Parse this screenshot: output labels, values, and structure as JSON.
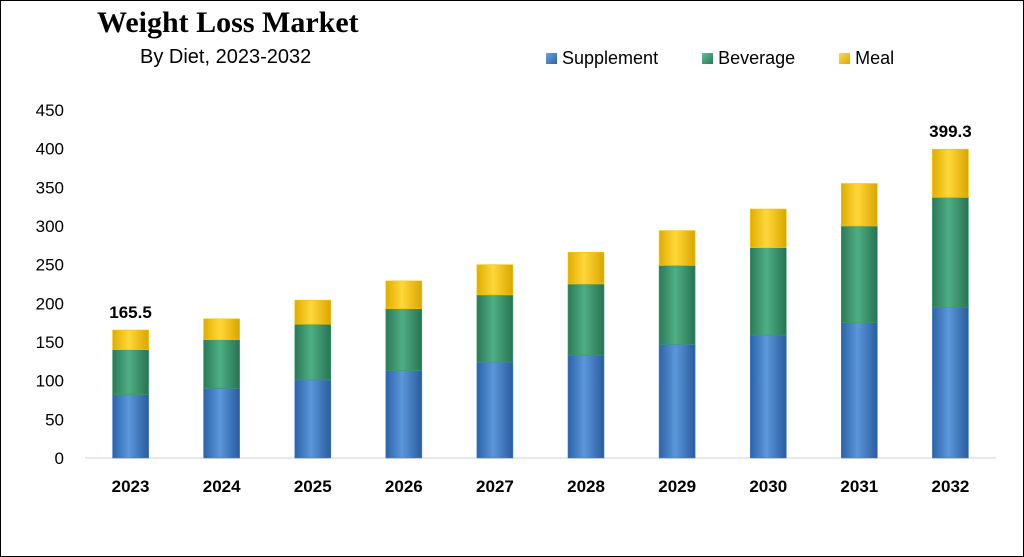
{
  "colors": {
    "Supplement": "#3d7cc9",
    "Beverage": "#3a9a72",
    "Meal": "#f5c400"
  },
  "chart_data": {
    "type": "bar",
    "stacked": true,
    "title": "Weight Loss Market",
    "subtitle": "By Diet, 2023-2032",
    "categories": [
      "2023",
      "2024",
      "2025",
      "2026",
      "2027",
      "2028",
      "2029",
      "2030",
      "2031",
      "2032"
    ],
    "series": [
      {
        "name": "Supplement",
        "values": [
          82,
          90,
          101,
          113,
          124,
          133,
          147,
          159,
          175,
          195
        ]
      },
      {
        "name": "Beverage",
        "values": [
          58,
          63,
          72,
          80,
          87,
          92,
          102,
          113,
          125,
          142
        ]
      },
      {
        "name": "Meal",
        "values": [
          25.5,
          27,
          31,
          36,
          39,
          41,
          45,
          50,
          55,
          62.3
        ]
      }
    ],
    "data_labels": [
      {
        "category": "2023",
        "text": "165.5"
      },
      {
        "category": "2032",
        "text": "399.3"
      }
    ],
    "ylim": [
      0,
      450
    ],
    "yticks": [
      0,
      50,
      100,
      150,
      200,
      250,
      300,
      350,
      400,
      450
    ],
    "legend_position": "top-right",
    "grid": false
  }
}
